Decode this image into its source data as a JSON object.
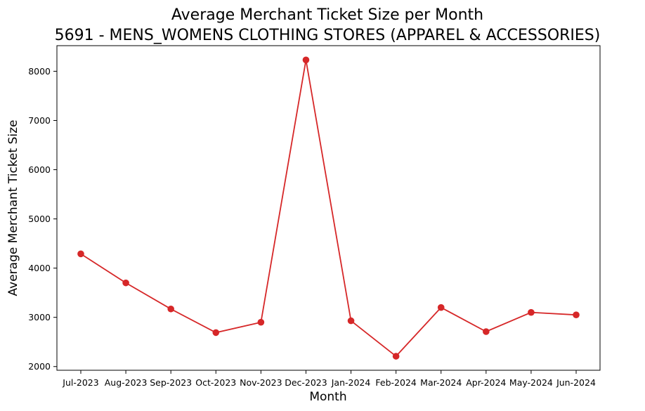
{
  "chart_data": {
    "type": "line",
    "title": "Average Merchant Ticket Size per Month",
    "subtitle": "5691 - MENS_WOMENS CLOTHING STORES (APPAREL & ACCESSORIES)",
    "xlabel": "Month",
    "ylabel": "Average Merchant Ticket Size",
    "categories": [
      "Jul-2023",
      "Aug-2023",
      "Sep-2023",
      "Oct-2023",
      "Nov-2023",
      "Dec-2023",
      "Jan-2024",
      "Feb-2024",
      "Mar-2024",
      "Apr-2024",
      "May-2024",
      "Jun-2024"
    ],
    "series": [
      {
        "color": "#d62728",
        "marker": "circle",
        "values": [
          4290,
          3700,
          3170,
          2690,
          2900,
          8230,
          2930,
          2210,
          3200,
          2710,
          3100,
          3050
        ]
      }
    ],
    "ylim": [
      1925,
      8520
    ],
    "yticks": [
      2000,
      3000,
      4000,
      5000,
      6000,
      7000,
      8000
    ],
    "ytick_labels": [
      "2000",
      "3000",
      "4000",
      "5000",
      "6000",
      "7000",
      "8000"
    ],
    "grid": false,
    "legend": "none"
  }
}
